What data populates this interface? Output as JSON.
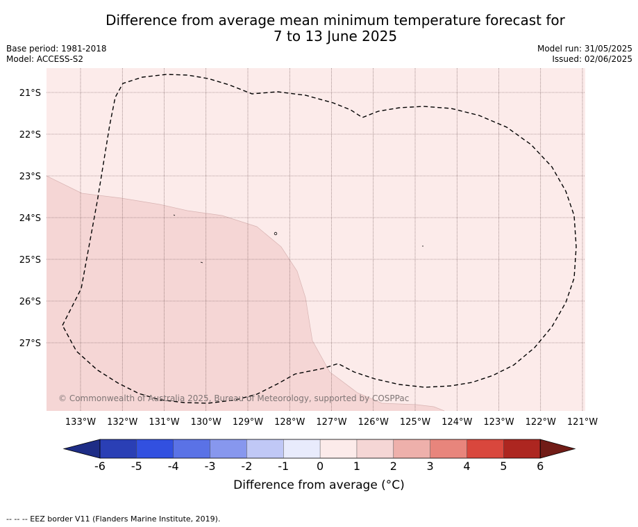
{
  "title": {
    "line1": "Difference from average mean minimum temperature forecast for",
    "line2": "7 to 13 June 2025"
  },
  "meta_left": {
    "base_period": "Base period: 1981-2018",
    "model": "Model: ACCESS-S2"
  },
  "meta_right": {
    "model_run": "Model run: 31/05/2025",
    "issued": "Issued: 02/06/2025"
  },
  "map": {
    "lat_labels": [
      "21°S",
      "22°S",
      "23°S",
      "24°S",
      "25°S",
      "26°S",
      "27°S"
    ],
    "lon_labels": [
      "133°W",
      "132°W",
      "131°W",
      "130°W",
      "129°W",
      "128°W",
      "127°W",
      "126°W",
      "125°W",
      "124°W",
      "123°W",
      "122°W",
      "121°W"
    ],
    "watermark": "© Commonwealth of Australia 2025, Bureau of Meteorology, supported by COSPPac",
    "colors": {
      "background_0_1": "#fcebea",
      "region_1_2": "#f5d6d5",
      "eez_line": "#000000"
    }
  },
  "colorbar": {
    "ticks": [
      "-6",
      "-5",
      "-4",
      "-3",
      "-2",
      "-1",
      "0",
      "1",
      "2",
      "3",
      "4",
      "5",
      "6"
    ],
    "colors": [
      "#1e2d86",
      "#2a3fb5",
      "#3250e0",
      "#5a72e6",
      "#8797ee",
      "#c0c8f6",
      "#e8ebfc",
      "#fcebea",
      "#f5d6d5",
      "#eeb0ab",
      "#e8857c",
      "#d9473d",
      "#ad2620",
      "#711c17"
    ],
    "label": "Difference from average (°C)"
  },
  "footnote": "--  --  -- EEZ border V11 (Flanders Marine Institute, 2019)."
}
